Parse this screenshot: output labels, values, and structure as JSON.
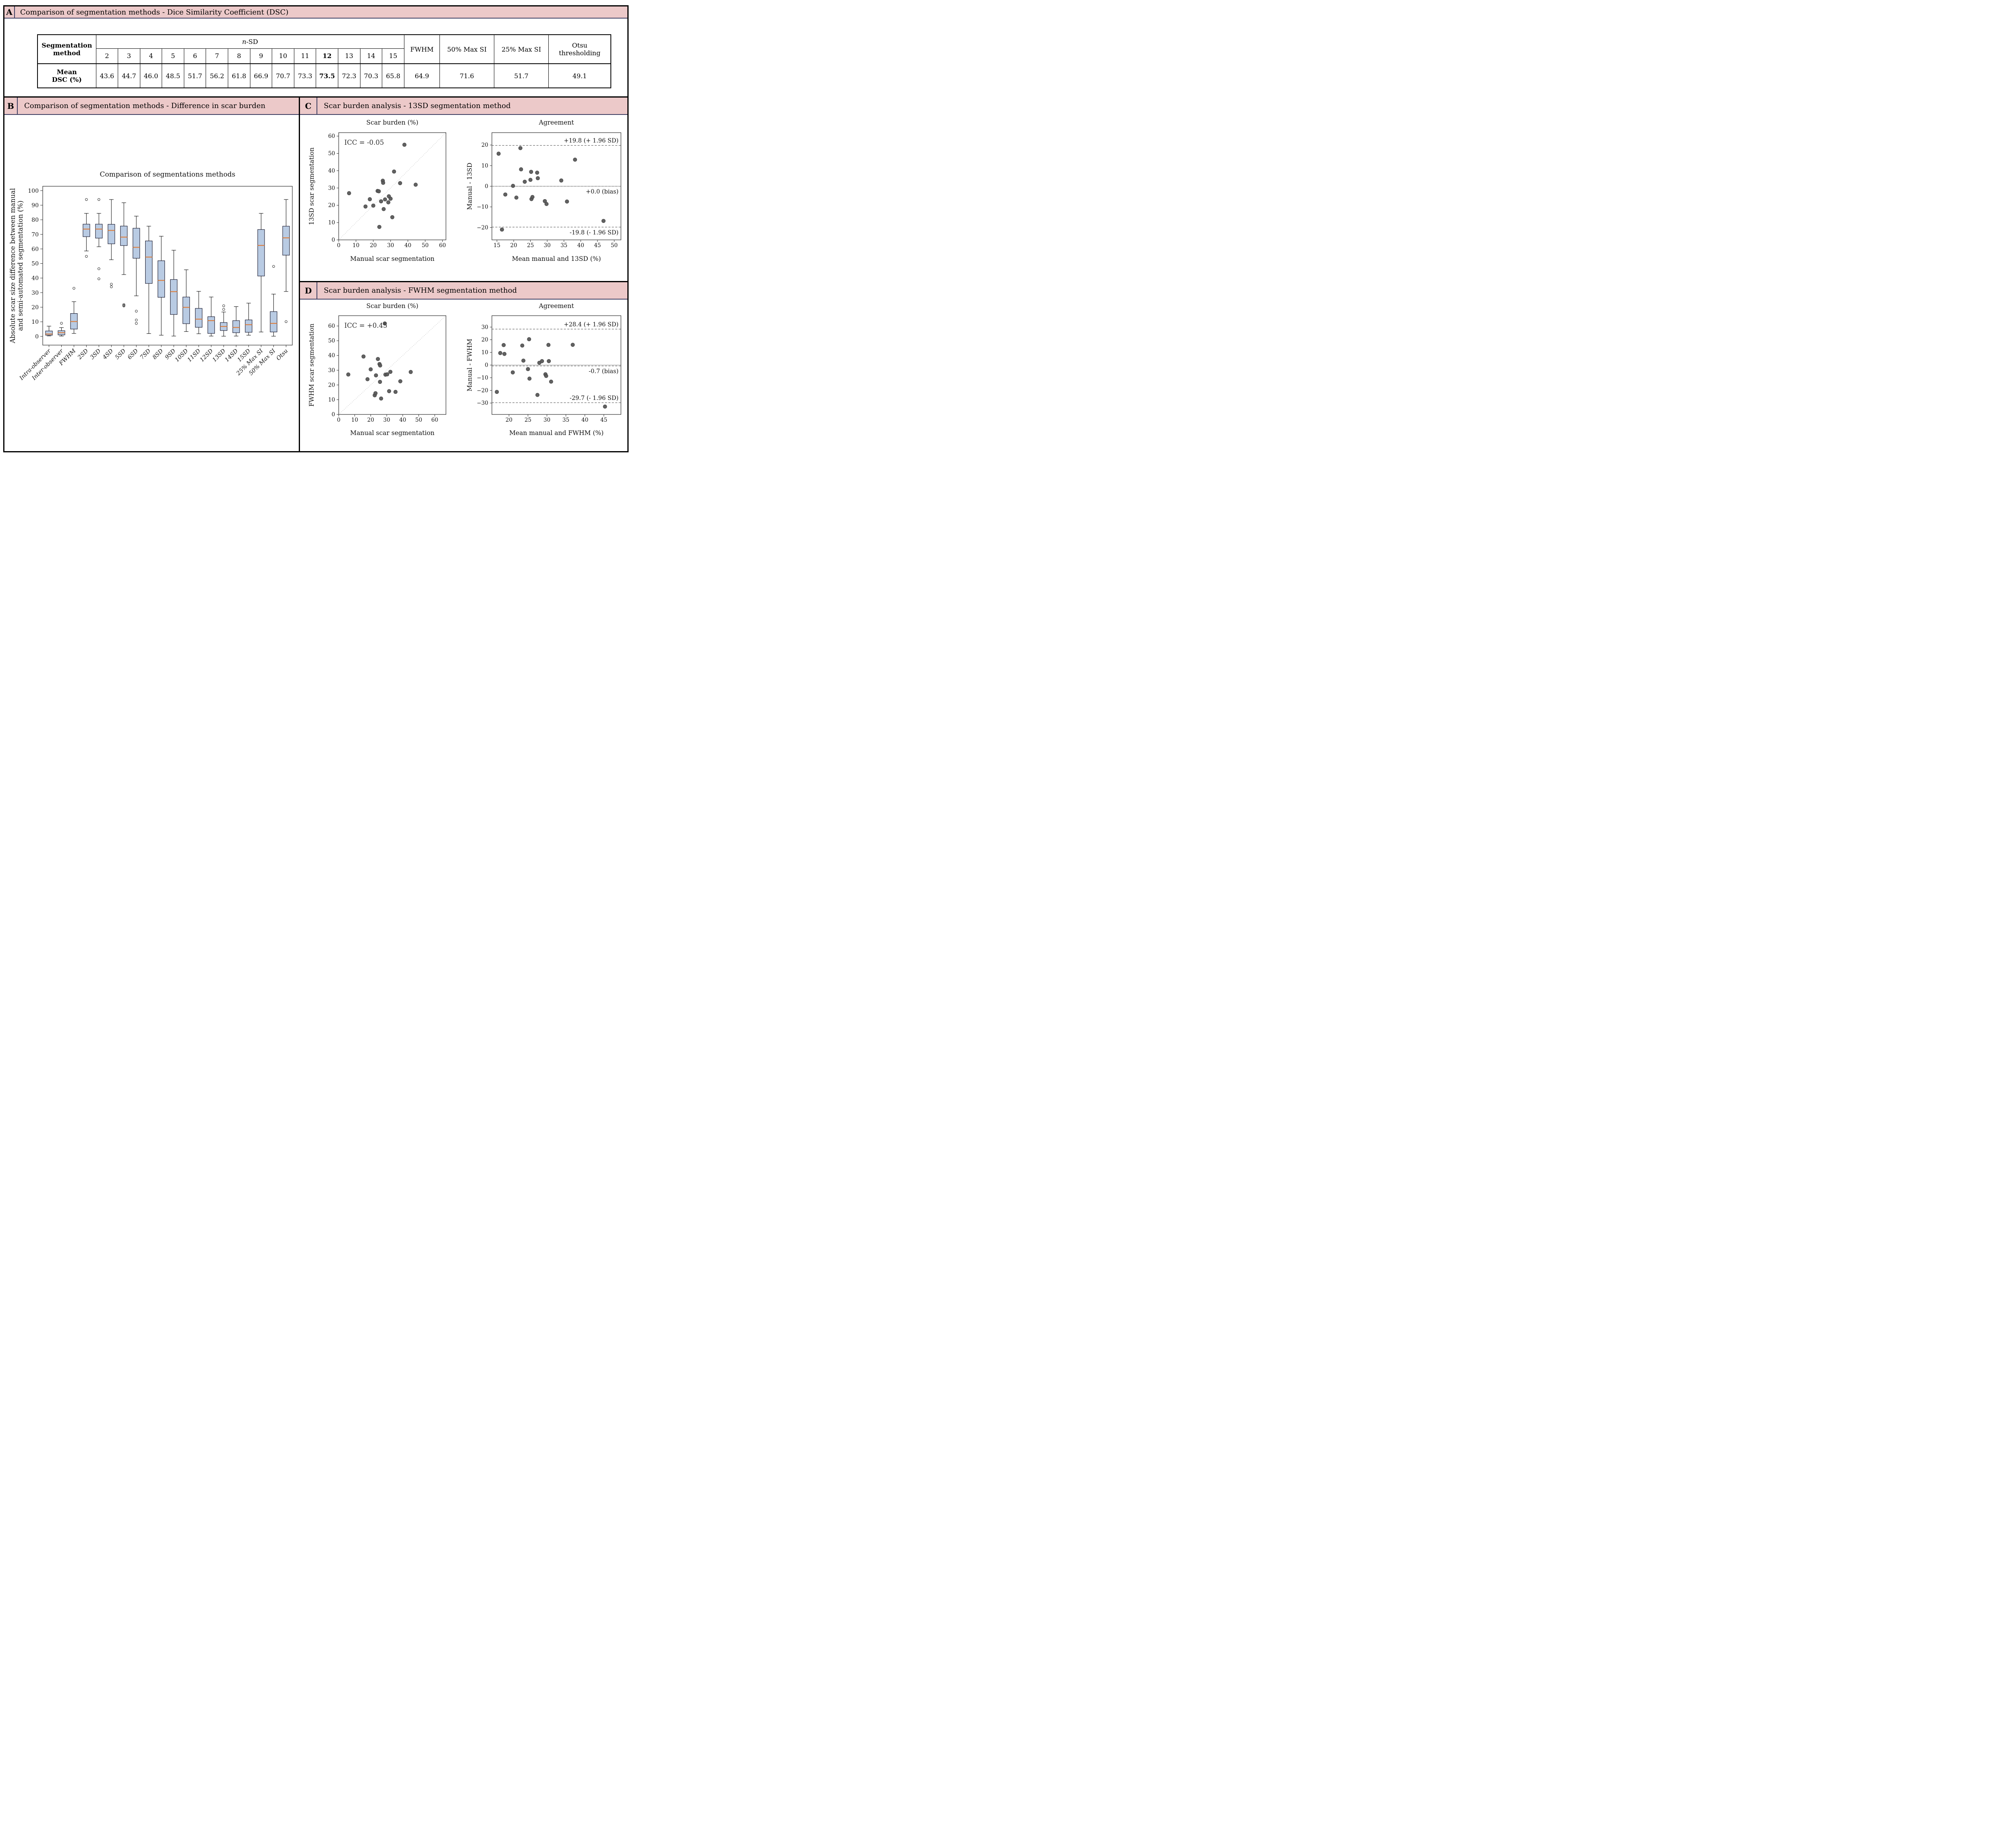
{
  "panels": {
    "a": {
      "label": "A",
      "title": "Comparison of segmentation methods  - Dice Similarity Coefficient (DSC)"
    },
    "b": {
      "label": "B",
      "title": "Comparison of segmentation methods - Difference in scar burden"
    },
    "c": {
      "label": "C",
      "title": "Scar burden analysis - 13SD segmentation method"
    },
    "d": {
      "label": "D",
      "title": "Scar burden analysis - FWHM segmentation method"
    }
  },
  "table": {
    "col_header_lines": [
      "Segmentation",
      "method"
    ],
    "nsd_prefix": "n",
    "nsd_suffix": "-SD",
    "nsd_columns": [
      "2",
      "3",
      "4",
      "5",
      "6",
      "7",
      "8",
      "9",
      "10",
      "11",
      "12",
      "13",
      "14",
      "15"
    ],
    "nsd_bold_index": 10,
    "extra_columns": [
      "FWHM",
      "50% Max SI",
      "25% Max SI"
    ],
    "otsu_lines": [
      "Otsu",
      "thresholding"
    ],
    "row_header_lines": [
      "Mean",
      "DSC (%)"
    ],
    "nsd_values": [
      "43.6",
      "44.7",
      "46.0",
      "48.5",
      "51.7",
      "56.2",
      "61.8",
      "66.9",
      "70.7",
      "73.3",
      "73.5",
      "72.3",
      "70.3",
      "65.8"
    ],
    "extra_values": [
      "64.9",
      "71.6",
      "51.7",
      "49.1"
    ]
  },
  "colors": {
    "header_pink": "#ecc9c9",
    "header_line_navy": "#3f3f63",
    "box_fill_blue": "#b9cbe3",
    "median_orange": "#e0782f",
    "point_gray": "#595959"
  },
  "chart_data": [
    {
      "id": "boxplot",
      "type": "box",
      "title": "Comparison of segmentations methods",
      "ylabel_lines": [
        "Absolute scar size difference between manual",
        "and semi-automated segmentation (%)"
      ],
      "ylim": [
        -6,
        103
      ],
      "yticks": [
        0,
        10,
        20,
        30,
        40,
        50,
        60,
        70,
        80,
        90,
        100
      ],
      "categories": [
        "Intra-observer",
        "Inter-observer",
        "FWHM",
        "2SD",
        "3SD",
        "4SD",
        "5SD",
        "6SD",
        "7SD",
        "8SD",
        "9SD",
        "10SD",
        "11SD",
        "12SD",
        "13SD",
        "14SD",
        "15SD",
        "25% Max SI",
        "50% Max SI",
        "Otsu"
      ],
      "boxes": [
        {
          "lo": 0.3,
          "q1": 0.8,
          "med": 1.6,
          "q3": 3.7,
          "hi": 7.0,
          "out": []
        },
        {
          "lo": 0.2,
          "q1": 1.0,
          "med": 2.5,
          "q3": 3.9,
          "hi": 6.0,
          "out": [
            9.0
          ]
        },
        {
          "lo": 2.0,
          "q1": 5.0,
          "med": 10.2,
          "q3": 15.7,
          "hi": 23.8,
          "out": [
            33.0
          ]
        },
        {
          "lo": 58.6,
          "q1": 68.4,
          "med": 73.6,
          "q3": 77.0,
          "hi": 84.4,
          "out": [
            93.9,
            54.9
          ]
        },
        {
          "lo": 61.5,
          "q1": 67.4,
          "med": 73.6,
          "q3": 77.0,
          "hi": 84.4,
          "out": [
            93.9,
            46.4,
            39.5
          ]
        },
        {
          "lo": 52.6,
          "q1": 63.5,
          "med": 72.7,
          "q3": 76.9,
          "hi": 93.9,
          "out": [
            35.8,
            34.0
          ]
        },
        {
          "lo": 42.4,
          "q1": 62.3,
          "med": 68.1,
          "q3": 75.7,
          "hi": 91.7,
          "out": [
            21.8,
            21.2,
            20.9
          ]
        },
        {
          "lo": 27.8,
          "q1": 53.6,
          "med": 61.1,
          "q3": 74.2,
          "hi": 82.5,
          "out": [
            17.3,
            11.2,
            8.9
          ]
        },
        {
          "lo": 1.9,
          "q1": 36.3,
          "med": 54.4,
          "q3": 65.5,
          "hi": 75.6,
          "out": []
        },
        {
          "lo": 0.8,
          "q1": 26.8,
          "med": 38.4,
          "q3": 51.9,
          "hi": 68.7,
          "out": []
        },
        {
          "lo": 0.2,
          "q1": 15.0,
          "med": 30.7,
          "q3": 39.0,
          "hi": 59.1,
          "out": []
        },
        {
          "lo": 3.3,
          "q1": 8.7,
          "med": 19.9,
          "q3": 27.0,
          "hi": 45.7,
          "out": []
        },
        {
          "lo": 1.8,
          "q1": 6.2,
          "med": 11.8,
          "q3": 19.2,
          "hi": 30.9,
          "out": []
        },
        {
          "lo": 0.2,
          "q1": 2.0,
          "med": 10.8,
          "q3": 13.5,
          "hi": 27.0,
          "out": []
        },
        {
          "lo": 0.1,
          "q1": 4.0,
          "med": 6.8,
          "q3": 9.5,
          "hi": 16.7,
          "out": [
            21.0,
            18.5
          ]
        },
        {
          "lo": 0.2,
          "q1": 2.5,
          "med": 6.1,
          "q3": 10.8,
          "hi": 20.4,
          "out": []
        },
        {
          "lo": 0.8,
          "q1": 2.8,
          "med": 8.0,
          "q3": 11.3,
          "hi": 22.8,
          "out": []
        },
        {
          "lo": 3.0,
          "q1": 41.4,
          "med": 62.4,
          "q3": 73.3,
          "hi": 84.4,
          "out": []
        },
        {
          "lo": 0.1,
          "q1": 3.0,
          "med": 8.9,
          "q3": 17.0,
          "hi": 29.0,
          "out": [
            48.0
          ]
        },
        {
          "lo": 30.8,
          "q1": 55.7,
          "med": 67.6,
          "q3": 75.6,
          "hi": 93.9,
          "out": [
            10.1
          ]
        }
      ]
    },
    {
      "id": "c-scar",
      "type": "scatter",
      "title": "Scar burden (%)",
      "annotation": "ICC = -0.05",
      "xlabel": "Manual scar segmentation",
      "ylabel": "13SD scar segmentation",
      "xlim": [
        0,
        62
      ],
      "ylim": [
        0,
        62
      ],
      "xticks": [
        0,
        10,
        20,
        30,
        40,
        50,
        60
      ],
      "yticks": [
        0,
        10,
        20,
        30,
        40,
        50,
        60
      ],
      "diagonal": true,
      "points": [
        [
          6,
          27
        ],
        [
          15.5,
          19.3
        ],
        [
          18,
          23.5
        ],
        [
          20,
          19.8
        ],
        [
          22.5,
          28.3
        ],
        [
          23.2,
          28.1
        ],
        [
          23.5,
          7.5
        ],
        [
          24.5,
          22.3
        ],
        [
          25.5,
          34.2
        ],
        [
          25.7,
          33.0
        ],
        [
          26,
          17.8
        ],
        [
          26.8,
          23.4
        ],
        [
          28.7,
          21.7
        ],
        [
          29,
          25.2
        ],
        [
          30,
          23.8
        ],
        [
          31,
          13.1
        ],
        [
          32,
          39.5
        ],
        [
          35.5,
          32.8
        ],
        [
          38,
          55
        ],
        [
          44.5,
          31.9
        ]
      ]
    },
    {
      "id": "c-agree",
      "type": "bland-altman",
      "title": "Agreement",
      "xlabel": "Mean manual and 13SD (%)",
      "ylabel": "Manual - 13SD",
      "xlim": [
        13.5,
        52
      ],
      "ylim": [
        -26,
        26
      ],
      "xticks": [
        15,
        20,
        25,
        30,
        35,
        40,
        45,
        50
      ],
      "yticks": [
        -20,
        -10,
        0,
        10,
        20
      ],
      "upper_loa": 19.8,
      "upper_label": "+19.8 (+ 1.96 SD)",
      "bias": 0.0,
      "bias_label": "+0.0 (bias)",
      "lower_loa": -19.8,
      "lower_label": "-19.8 (- 1.96 SD)",
      "lower_label_above": false,
      "points": [
        [
          15.5,
          15.8
        ],
        [
          16.5,
          -21
        ],
        [
          17.5,
          -4
        ],
        [
          19.8,
          0.2
        ],
        [
          20.8,
          -5.5
        ],
        [
          22,
          18.5
        ],
        [
          22.2,
          8.2
        ],
        [
          23.3,
          2.2
        ],
        [
          25,
          3.1
        ],
        [
          25.2,
          7
        ],
        [
          25.3,
          -6.2
        ],
        [
          25.6,
          -5.2
        ],
        [
          27,
          6.6
        ],
        [
          27.2,
          3.9
        ],
        [
          29.3,
          -7.2
        ],
        [
          29.8,
          -8.6
        ],
        [
          34.2,
          2.8
        ],
        [
          35.9,
          -7.4
        ],
        [
          38.3,
          12.9
        ],
        [
          46.8,
          -16.8
        ]
      ]
    },
    {
      "id": "d-scar",
      "type": "scatter",
      "title": "Scar burden (%)",
      "annotation": "ICC = +0.45",
      "xlabel": "Manual scar segmentation",
      "ylabel": "FWHM scar segmentation",
      "xlim": [
        0,
        67
      ],
      "ylim": [
        0,
        67
      ],
      "xticks": [
        0,
        10,
        20,
        30,
        40,
        50,
        60
      ],
      "yticks": [
        0,
        10,
        20,
        30,
        40,
        50,
        60
      ],
      "diagonal": true,
      "points": [
        [
          6,
          27.1
        ],
        [
          15.5,
          39.3
        ],
        [
          18,
          23.9
        ],
        [
          20,
          30.6
        ],
        [
          22.5,
          13
        ],
        [
          23,
          14.4
        ],
        [
          23.3,
          26.5
        ],
        [
          24.5,
          37.6
        ],
        [
          25.5,
          34.2
        ],
        [
          25.9,
          33.2
        ],
        [
          25.8,
          22.1
        ],
        [
          26.5,
          10.8
        ],
        [
          28.8,
          61.7
        ],
        [
          29.2,
          27
        ],
        [
          30.3,
          27.2
        ],
        [
          31.5,
          15.8
        ],
        [
          32.3,
          28.9
        ],
        [
          35.5,
          15.3
        ],
        [
          38.5,
          22.5
        ],
        [
          45,
          28.8
        ]
      ]
    },
    {
      "id": "d-agree",
      "type": "bland-altman",
      "title": "Agreement",
      "xlabel": "Mean manual and FWHM (%)",
      "ylabel": "Manual - FWHM",
      "xlim": [
        15.5,
        49.5
      ],
      "ylim": [
        -39,
        39
      ],
      "xticks": [
        20,
        25,
        30,
        35,
        40,
        45
      ],
      "yticks": [
        -30,
        -20,
        -10,
        0,
        10,
        20,
        30
      ],
      "upper_loa": 28.4,
      "upper_label": "+28.4 (+ 1.96 SD)",
      "bias": -0.7,
      "bias_label": "-0.7 (bias)",
      "lower_loa": -29.7,
      "lower_label": "-29.7 (- 1.96 SD)",
      "lower_label_above": true,
      "points": [
        [
          16.8,
          -21.2
        ],
        [
          17.7,
          9.5
        ],
        [
          18.6,
          15.8
        ],
        [
          18.8,
          8.8
        ],
        [
          21,
          -5.8
        ],
        [
          23.5,
          15.4
        ],
        [
          23.8,
          3.5
        ],
        [
          25,
          -3.2
        ],
        [
          25.3,
          20.4
        ],
        [
          25.4,
          -10.7
        ],
        [
          27.5,
          -23.6
        ],
        [
          28,
          1.8
        ],
        [
          28.7,
          3.1
        ],
        [
          29.6,
          -7.3
        ],
        [
          29.8,
          -8.6
        ],
        [
          30.4,
          15.9
        ],
        [
          30.5,
          3.1
        ],
        [
          31.1,
          -13.1
        ],
        [
          36.8,
          16
        ],
        [
          45.3,
          -32.8
        ]
      ]
    }
  ]
}
